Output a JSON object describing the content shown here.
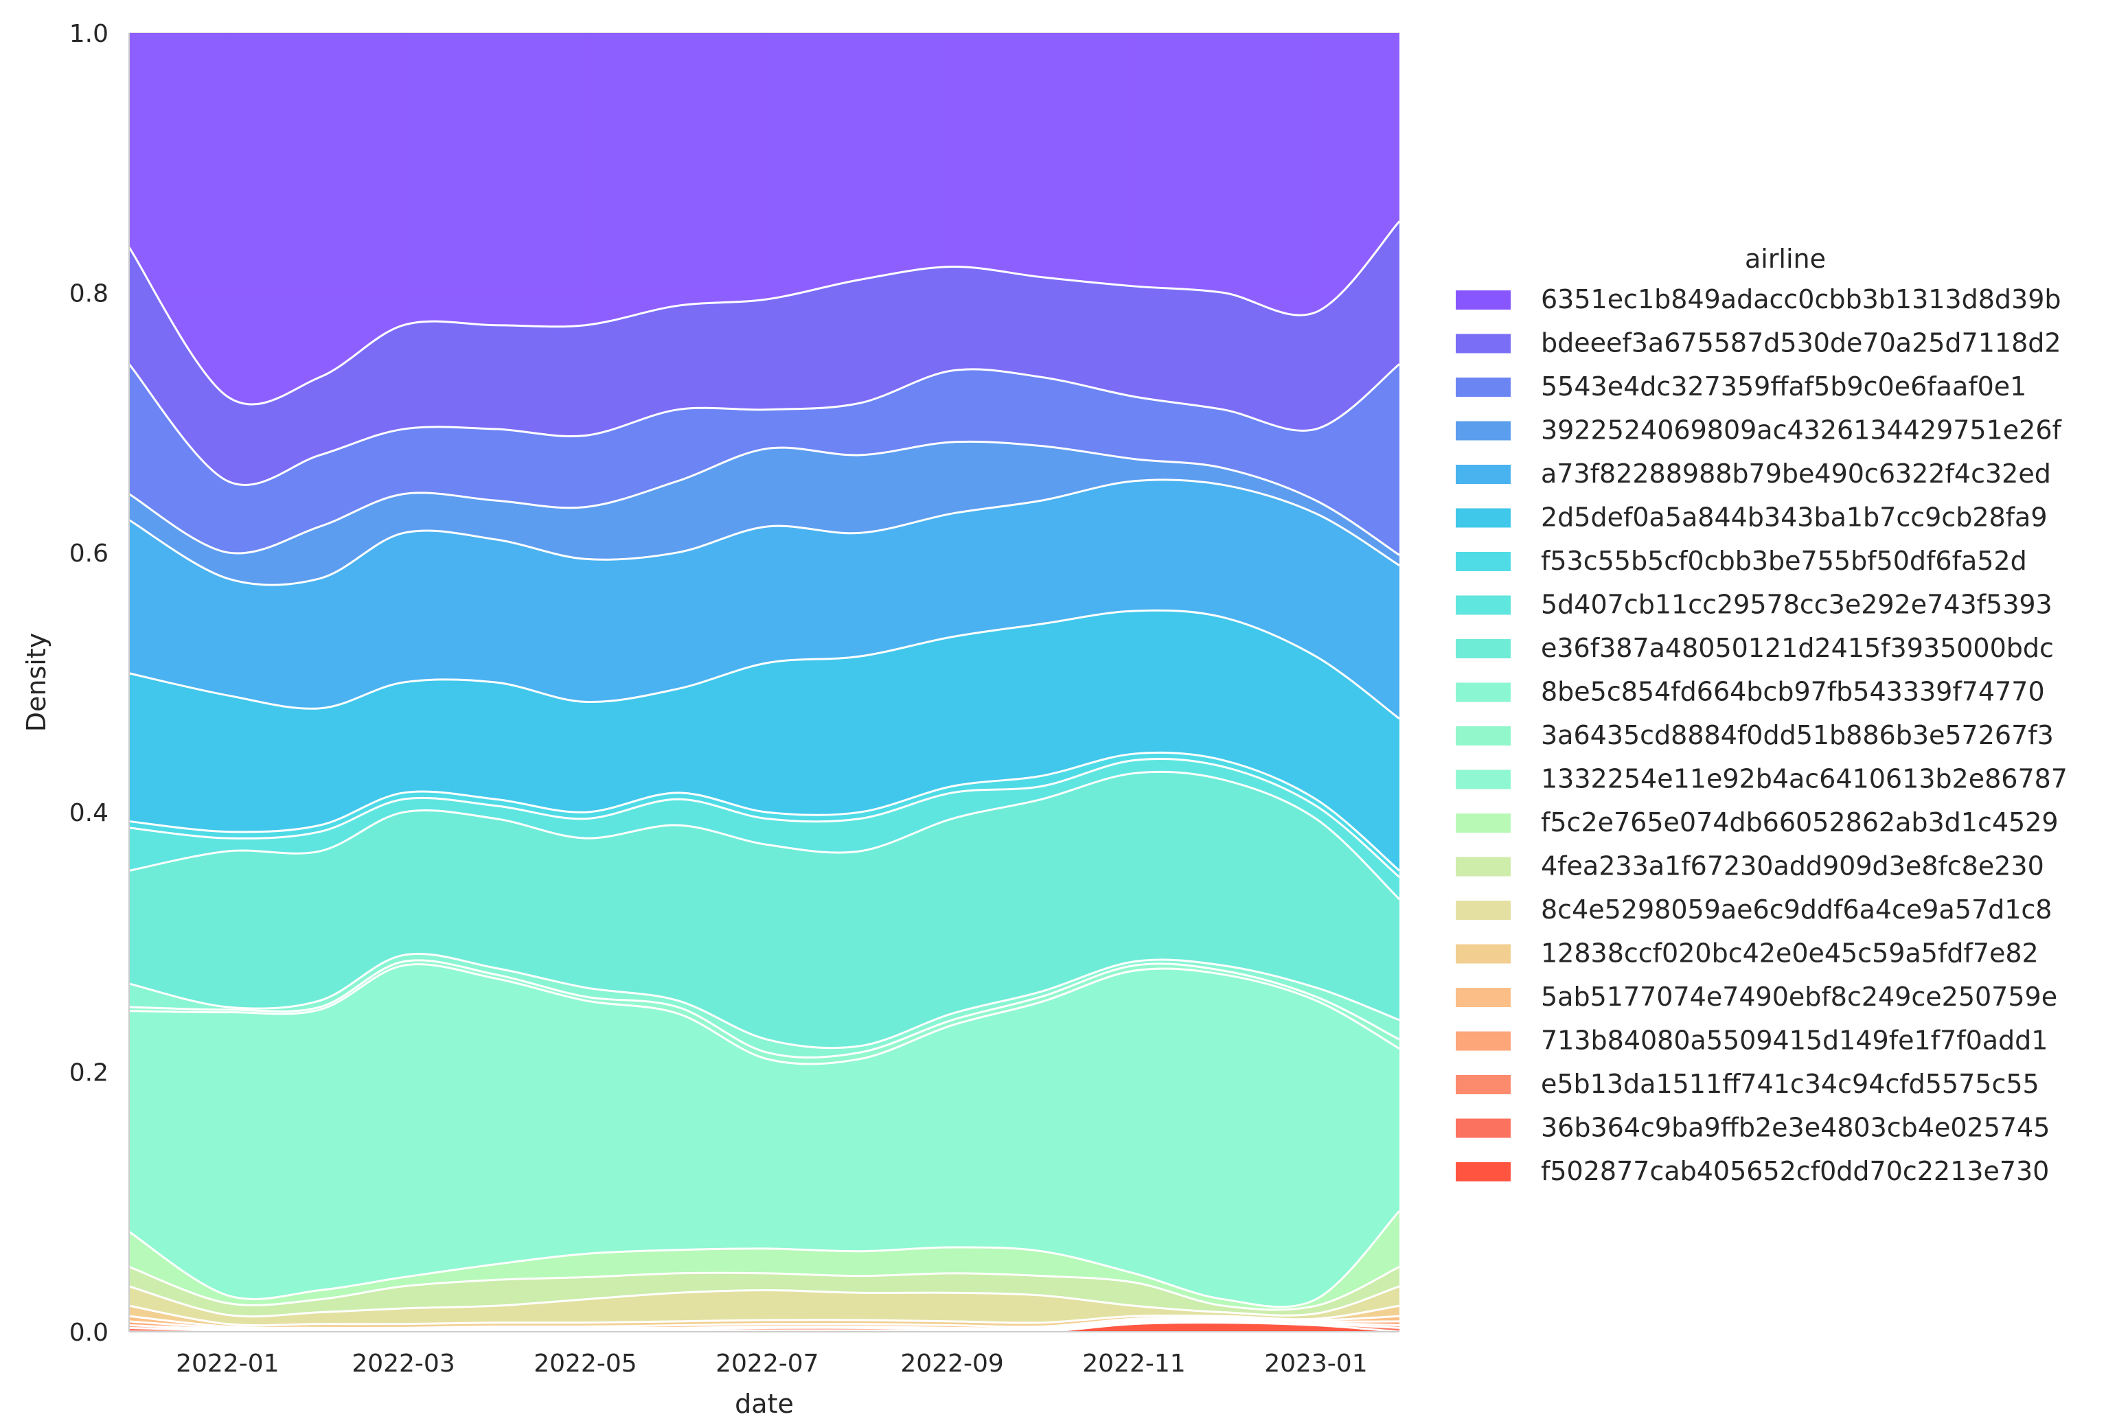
{
  "chart_data": {
    "type": "area",
    "stacked": true,
    "normalized": true,
    "xlabel": "date",
    "ylabel": "Density",
    "ylim": [
      0,
      1.0
    ],
    "xlim": [
      "2021-11-29",
      "2023-01-29"
    ],
    "x_ticks": [
      "2022-01",
      "2022-03",
      "2022-05",
      "2022-07",
      "2022-09",
      "2022-11",
      "2023-01"
    ],
    "y_ticks": [
      "0.0",
      "0.2",
      "0.4",
      "0.6",
      "0.8",
      "1.0"
    ],
    "grid": true,
    "legend": {
      "title": "airline",
      "placement": "right"
    },
    "x": [
      "2021-11-29",
      "2022-01-01",
      "2022-02-01",
      "2022-03-01",
      "2022-04-01",
      "2022-05-01",
      "2022-06-01",
      "2022-07-01",
      "2022-08-01",
      "2022-09-01",
      "2022-10-01",
      "2022-11-01",
      "2022-12-01",
      "2023-01-01",
      "2023-01-29"
    ],
    "cumulative_upper_boundaries": [
      {
        "name": "6351ec1b849adacc0cbb3b1313d8d39b",
        "color": "#8856ff",
        "values": [
          1,
          1,
          1,
          1,
          1,
          1,
          1,
          1,
          1,
          1,
          1,
          1,
          1,
          1,
          1
        ]
      },
      {
        "name": "bdeeef3a675587d530de70a25d7118d2",
        "color": "#7a6df6",
        "values": [
          0.835,
          0.72,
          0.735,
          0.775,
          0.775,
          0.775,
          0.79,
          0.795,
          0.81,
          0.82,
          0.812,
          0.805,
          0.8,
          0.785,
          0.855
        ]
      },
      {
        "name": "5543e4dc327359ffaf5b9c0e6faaf0e1",
        "color": "#6b86f3",
        "values": [
          0.745,
          0.655,
          0.675,
          0.695,
          0.695,
          0.69,
          0.71,
          0.71,
          0.715,
          0.74,
          0.735,
          0.72,
          0.71,
          0.695,
          0.745
        ]
      },
      {
        "name": "3922524069809ac4326134429751e26f",
        "color": "#5c9eee",
        "values": [
          0.645,
          0.6,
          0.62,
          0.645,
          0.64,
          0.635,
          0.655,
          0.68,
          0.675,
          0.685,
          0.682,
          0.672,
          0.665,
          0.64,
          0.598
        ]
      },
      {
        "name": "a73f82288988b79be490c6322f4c32ed",
        "color": "#49b3ef",
        "values": [
          0.625,
          0.58,
          0.58,
          0.615,
          0.61,
          0.595,
          0.6,
          0.62,
          0.615,
          0.63,
          0.64,
          0.655,
          0.652,
          0.63,
          0.59
        ]
      },
      {
        "name": "2d5def0a5a844b343ba1b7cc9cb28fa9",
        "color": "#3fc8ea",
        "values": [
          0.507,
          0.49,
          0.48,
          0.5,
          0.5,
          0.485,
          0.495,
          0.515,
          0.52,
          0.535,
          0.545,
          0.555,
          0.55,
          0.52,
          0.472
        ]
      },
      {
        "name": "f53c55b5cf0cbb3be755bf50df6fa52d",
        "color": "#4fdce6",
        "values": [
          0.393,
          0.385,
          0.39,
          0.415,
          0.41,
          0.4,
          0.415,
          0.4,
          0.4,
          0.42,
          0.428,
          0.445,
          0.44,
          0.41,
          0.355
        ]
      },
      {
        "name": "5d407cb11cc29578cc3e292e743f5393",
        "color": "#5fe6df",
        "values": [
          0.388,
          0.38,
          0.385,
          0.41,
          0.405,
          0.395,
          0.41,
          0.395,
          0.395,
          0.415,
          0.42,
          0.44,
          0.435,
          0.405,
          0.35
        ]
      },
      {
        "name": "e36f387a48050121d2415f3935000bdc",
        "color": "#6fecd6",
        "values": [
          0.355,
          0.37,
          0.37,
          0.4,
          0.395,
          0.38,
          0.39,
          0.375,
          0.37,
          0.395,
          0.41,
          0.43,
          0.425,
          0.395,
          0.333
        ]
      },
      {
        "name": "8be5c854fd664bcb97fb543339f74770",
        "color": "#8af6d2",
        "values": [
          0.268,
          0.25,
          0.255,
          0.29,
          0.28,
          0.265,
          0.255,
          0.225,
          0.22,
          0.245,
          0.262,
          0.285,
          0.282,
          0.265,
          0.24
        ]
      },
      {
        "name": "3a6435cd8884f0dd51b886b3e57267f3",
        "color": "#93f7cc",
        "values": [
          0.25,
          0.248,
          0.25,
          0.285,
          0.275,
          0.258,
          0.25,
          0.215,
          0.215,
          0.24,
          0.258,
          0.282,
          0.278,
          0.258,
          0.225
        ]
      },
      {
        "name": "1332254e11e92b4ac6410613b2e86787",
        "color": "#8ff8d2",
        "values": [
          0.247,
          0.246,
          0.248,
          0.282,
          0.272,
          0.255,
          0.245,
          0.21,
          0.21,
          0.236,
          0.254,
          0.278,
          0.275,
          0.255,
          0.218
        ]
      },
      {
        "name": "f5c2e765e074db66052862ab3d1c4529",
        "color": "#b8f9b6",
        "values": [
          0.077,
          0.028,
          0.032,
          0.042,
          0.052,
          0.06,
          0.063,
          0.064,
          0.062,
          0.065,
          0.062,
          0.045,
          0.025,
          0.025,
          0.093
        ]
      },
      {
        "name": "4fea233a1f67230add909d3e8fc8e230",
        "color": "#ceecaa",
        "values": [
          0.05,
          0.022,
          0.025,
          0.035,
          0.04,
          0.042,
          0.045,
          0.045,
          0.043,
          0.045,
          0.043,
          0.038,
          0.02,
          0.02,
          0.05
        ]
      },
      {
        "name": "8c4e5298059ae6c9ddf6a4ce9a57d1c8",
        "color": "#e4e0a1",
        "values": [
          0.035,
          0.013,
          0.015,
          0.018,
          0.02,
          0.025,
          0.03,
          0.032,
          0.03,
          0.03,
          0.028,
          0.02,
          0.015,
          0.014,
          0.035
        ]
      },
      {
        "name": "12838ccf020bc42e0e45c59a5fdf7e82",
        "color": "#f2cf91",
        "values": [
          0.02,
          0.006,
          0.006,
          0.006,
          0.007,
          0.007,
          0.008,
          0.009,
          0.009,
          0.008,
          0.007,
          0.012,
          0.012,
          0.01,
          0.02
        ]
      },
      {
        "name": "5ab5177074e7490ebf8c249ce250759e",
        "color": "#fbbe86",
        "values": [
          0.012,
          0.004,
          0.003,
          0.003,
          0.004,
          0.004,
          0.005,
          0.006,
          0.006,
          0.005,
          0.004,
          0.01,
          0.011,
          0.009,
          0.012
        ]
      },
      {
        "name": "713b84080a5509415d149fe1f7f0add1",
        "color": "#fda67a",
        "values": [
          0.008,
          0.003,
          0.002,
          0.002,
          0.003,
          0.003,
          0.003,
          0.004,
          0.004,
          0.003,
          0.003,
          0.009,
          0.01,
          0.008,
          0.008
        ]
      },
      {
        "name": "e5b13da1511ff741c34c94cfd5575c55",
        "color": "#fc8a6c",
        "values": [
          0.005,
          0.002,
          0.001,
          0.001,
          0.002,
          0.002,
          0.002,
          0.003,
          0.003,
          0.002,
          0.002,
          0.008,
          0.009,
          0.007,
          0.005
        ]
      },
      {
        "name": "36b364c9ba9ffb2e3e4803cb4e025745",
        "color": "#fb725e",
        "values": [
          0.003,
          0.001,
          0.001,
          0.001,
          0.001,
          0.001,
          0.001,
          0.001,
          0.001,
          0.001,
          0.001,
          0.007,
          0.008,
          0.006,
          0.003
        ]
      },
      {
        "name": "f502877cab405652cf0dd70c2213e730",
        "color": "#ff5540",
        "values": [
          0,
          0,
          0,
          0,
          0,
          0,
          0,
          0,
          0,
          0,
          0,
          0.006,
          0.007,
          0.005,
          0
        ]
      }
    ]
  }
}
